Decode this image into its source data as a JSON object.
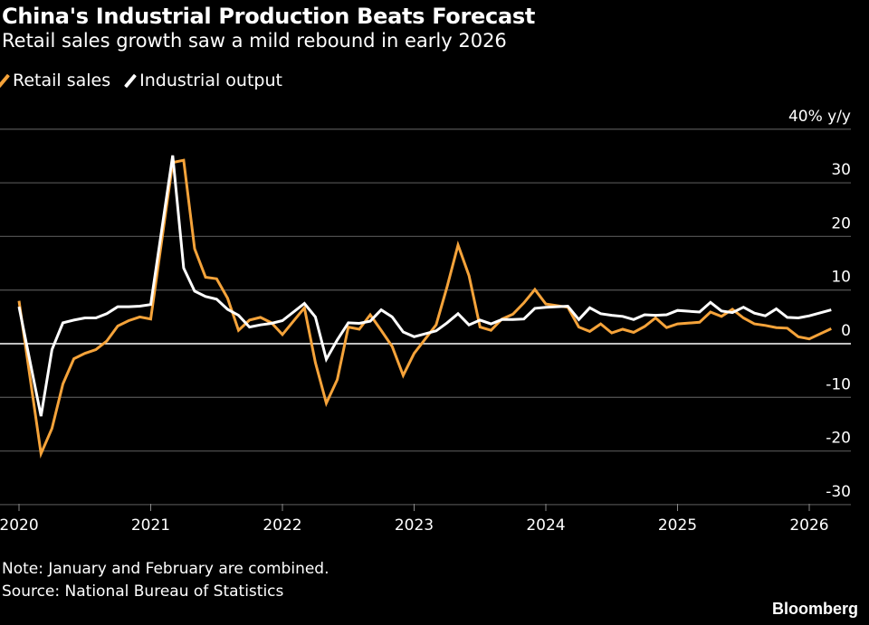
{
  "title": "China's Industrial Production Beats Forecast",
  "subtitle": "Retail sales growth saw a mild rebound in early 2026",
  "note": "Note: January and February are combined.",
  "source": "Source: National Bureau of Statistics",
  "brand": "Bloomberg",
  "chart_data": {
    "type": "line",
    "title": "China's Industrial Production Beats Forecast",
    "ylabel": "40% y/y",
    "ylim": [
      -30,
      40
    ],
    "yticks": [
      {
        "value": 40,
        "label": "40% y/y"
      },
      {
        "value": 30,
        "label": "30"
      },
      {
        "value": 20,
        "label": "20"
      },
      {
        "value": 10,
        "label": "10"
      },
      {
        "value": 0,
        "label": "0"
      },
      {
        "value": -10,
        "label": "-10"
      },
      {
        "value": -20,
        "label": "-20"
      },
      {
        "value": -30,
        "label": "-30"
      }
    ],
    "xticks": [
      "2020",
      "2021",
      "2022",
      "2023",
      "2024",
      "2025",
      "2026"
    ],
    "grid": true,
    "legend": "top-left",
    "x": [
      "2019-12",
      "2020-02",
      "2020-03",
      "2020-04",
      "2020-05",
      "2020-06",
      "2020-07",
      "2020-08",
      "2020-09",
      "2020-10",
      "2020-11",
      "2020-12",
      "2021-02",
      "2021-03",
      "2021-04",
      "2021-05",
      "2021-06",
      "2021-07",
      "2021-08",
      "2021-09",
      "2021-10",
      "2021-11",
      "2021-12",
      "2022-02",
      "2022-03",
      "2022-04",
      "2022-05",
      "2022-06",
      "2022-07",
      "2022-08",
      "2022-09",
      "2022-10",
      "2022-11",
      "2022-12",
      "2023-02",
      "2023-03",
      "2023-04",
      "2023-05",
      "2023-06",
      "2023-07",
      "2023-08",
      "2023-09",
      "2023-10",
      "2023-11",
      "2023-12",
      "2024-02",
      "2024-03",
      "2024-04",
      "2024-05",
      "2024-06",
      "2024-07",
      "2024-08",
      "2024-09",
      "2024-10",
      "2024-11",
      "2024-12",
      "2025-02",
      "2025-03",
      "2025-04",
      "2025-05",
      "2025-06",
      "2025-07",
      "2025-08",
      "2025-09",
      "2025-10",
      "2025-11",
      "2025-12",
      "2026-02"
    ],
    "series": [
      {
        "name": "Retail sales",
        "color": "#f5a33a",
        "values": [
          8.0,
          -20.5,
          -15.8,
          -7.5,
          -2.8,
          -1.8,
          -1.1,
          0.5,
          3.3,
          4.3,
          5.0,
          4.6,
          33.8,
          34.2,
          17.7,
          12.4,
          12.1,
          8.5,
          2.5,
          4.4,
          4.9,
          3.9,
          1.7,
          6.7,
          -3.5,
          -11.1,
          -6.7,
          3.1,
          2.7,
          5.4,
          2.5,
          -0.5,
          -5.9,
          -1.8,
          3.5,
          10.6,
          18.4,
          12.7,
          3.1,
          2.5,
          4.6,
          5.5,
          7.6,
          10.1,
          7.4,
          6.8,
          3.1,
          2.3,
          3.7,
          2.0,
          2.7,
          2.1,
          3.2,
          4.8,
          3.0,
          3.7,
          4.0,
          5.9,
          5.1,
          6.4,
          4.8,
          3.7,
          3.4,
          3.0,
          2.9,
          1.3,
          0.9,
          2.8
        ]
      },
      {
        "name": "Industrial output",
        "color": "#ffffff",
        "values": [
          6.9,
          -13.5,
          -1.1,
          3.9,
          4.4,
          4.8,
          4.8,
          5.6,
          6.9,
          6.9,
          7.0,
          7.3,
          35.1,
          14.1,
          9.8,
          8.8,
          8.3,
          6.4,
          5.3,
          3.1,
          3.5,
          3.8,
          4.3,
          7.5,
          5.0,
          -2.9,
          0.7,
          3.9,
          3.8,
          4.2,
          6.3,
          5.0,
          2.2,
          1.3,
          2.4,
          3.9,
          5.6,
          3.5,
          4.4,
          3.7,
          4.5,
          4.5,
          4.6,
          6.6,
          6.8,
          7.0,
          4.5,
          6.7,
          5.6,
          5.3,
          5.1,
          4.5,
          5.4,
          5.3,
          5.4,
          6.2,
          5.9,
          7.7,
          6.1,
          5.8,
          6.8,
          5.7,
          5.2,
          6.5,
          4.9,
          4.8,
          5.2,
          6.3
        ]
      }
    ]
  }
}
